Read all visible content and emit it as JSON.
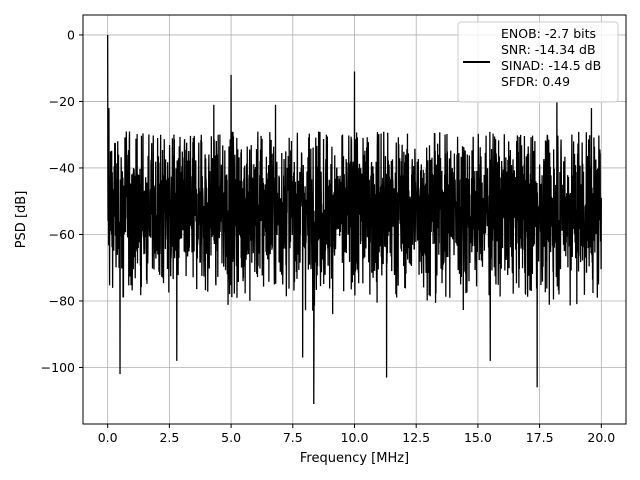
{
  "chart_data": {
    "type": "line",
    "title": "",
    "xlabel": "Frequency [MHz]",
    "ylabel": "PSD [dB]",
    "xlim": [
      -1.0,
      21.0
    ],
    "ylim": [
      -117,
      6
    ],
    "xticks": [
      0.0,
      2.5,
      5.0,
      7.5,
      10.0,
      12.5,
      15.0,
      17.5,
      20.0
    ],
    "xtick_labels": [
      "0.0",
      "2.5",
      "5.0",
      "7.5",
      "10.0",
      "12.5",
      "15.0",
      "17.5",
      "20.0"
    ],
    "yticks": [
      0,
      -20,
      -40,
      -60,
      -80,
      -100
    ],
    "ytick_labels": [
      "0",
      "−20",
      "−40",
      "−60",
      "−80",
      "−100"
    ],
    "grid": true,
    "legend_position": "top-right",
    "legend": [
      "ENOB: -2.7 bits",
      "SNR: -14.34 dB",
      "SINAD: -14.5 dB",
      "SFDR: 0.49"
    ],
    "series": [
      {
        "color": "#000000",
        "x_range": [
          0.0,
          20.0
        ],
        "typical_range_db": [
          -72,
          -33
        ],
        "peaks": [
          {
            "x": 0.0,
            "y": 0.0
          },
          {
            "x": 0.05,
            "y": -22
          },
          {
            "x": 0.5,
            "y": -30
          },
          {
            "x": 5.0,
            "y": -12
          },
          {
            "x": 4.3,
            "y": -21
          },
          {
            "x": 10.0,
            "y": -11
          },
          {
            "x": 6.8,
            "y": -21
          },
          {
            "x": 18.2,
            "y": -20
          },
          {
            "x": 19.6,
            "y": -22
          }
        ],
        "dips": [
          {
            "x": 0.5,
            "y": -102
          },
          {
            "x": 8.35,
            "y": -111
          },
          {
            "x": 11.3,
            "y": -103
          },
          {
            "x": 17.4,
            "y": -106
          },
          {
            "x": 15.5,
            "y": -98
          },
          {
            "x": 7.9,
            "y": -97
          },
          {
            "x": 2.8,
            "y": -98
          }
        ]
      }
    ]
  }
}
